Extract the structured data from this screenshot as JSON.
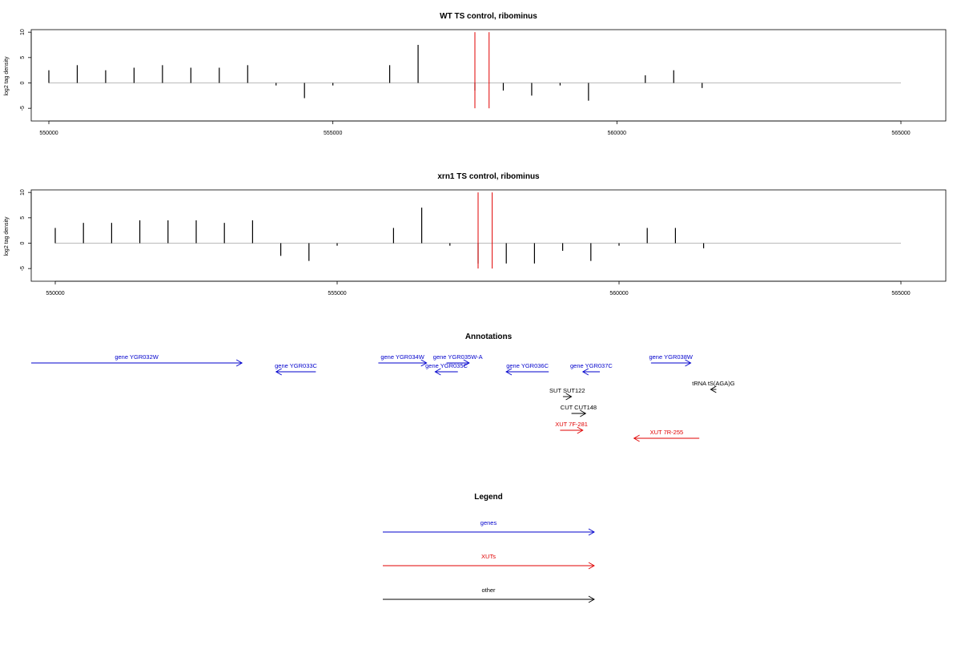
{
  "chart_data": [
    {
      "type": "bar",
      "title": "WT TS control, ribominus",
      "ylabel": "log2 tag density",
      "xlim": [
        550000,
        565000
      ],
      "ylim": [
        -7.5,
        10.5
      ],
      "yticks": [
        -5,
        0,
        5,
        10
      ],
      "xticks": [
        550000,
        555000,
        560000,
        565000
      ],
      "vlines": [
        557500,
        557750
      ],
      "vline_color": "#e00000",
      "bar_color": "#000000",
      "baseline_color": "#bbbbbb",
      "baseline_range": [
        550000,
        565000
      ],
      "series": [
        {
          "x": [
            550000,
            550500,
            551000,
            551500,
            552000,
            552500,
            553000,
            553500,
            554000,
            554500,
            555000,
            555500,
            556000,
            556500,
            557000,
            557500,
            558000,
            558500,
            559000,
            559500,
            560000,
            560500,
            561000,
            561500
          ],
          "values": [
            2.5,
            3.5,
            2.5,
            3.0,
            3.5,
            3.0,
            3.0,
            3.5,
            -0.5,
            -3.0,
            -0.5,
            0,
            3.5,
            7.5,
            0,
            -1.5,
            -1.5,
            -2.5,
            -0.5,
            -3.5,
            0,
            1.5,
            2.5,
            -1.0
          ]
        }
      ]
    },
    {
      "type": "bar",
      "title": "xrn1 TS control, ribominus",
      "ylabel": "log2 tag density",
      "xlim": [
        550000,
        565000
      ],
      "ylim": [
        -7.5,
        10.5
      ],
      "yticks": [
        -5,
        0,
        5,
        10
      ],
      "xticks": [
        550000,
        555000,
        560000,
        565000
      ],
      "vlines": [
        557500,
        557750
      ],
      "vline_color": "#e00000",
      "bar_color": "#000000",
      "baseline_color": "#bbbbbb",
      "baseline_range": [
        550000,
        565000
      ],
      "series": [
        {
          "x": [
            550000,
            550500,
            551000,
            551500,
            552000,
            552500,
            553000,
            553500,
            554000,
            554500,
            555000,
            555500,
            556000,
            556500,
            557000,
            557500,
            558000,
            558500,
            559000,
            559500,
            560000,
            560500,
            561000,
            561500
          ],
          "values": [
            3.0,
            4.0,
            4.0,
            4.5,
            4.5,
            4.5,
            4.0,
            4.5,
            -2.5,
            -3.5,
            -0.5,
            0,
            3.0,
            7.0,
            -0.5,
            -4.0,
            -4.0,
            -4.0,
            -1.5,
            -3.5,
            -0.5,
            3.0,
            3.0,
            -1.0
          ]
        }
      ]
    }
  ],
  "annotations": {
    "title": "Annotations",
    "xlim": [
      550000,
      565000
    ],
    "items": [
      {
        "label": "gene YGR032W",
        "start": 549000,
        "end": 553400,
        "strand": "+",
        "row": 0,
        "color": "#0000cc"
      },
      {
        "label": "gene YGR033C",
        "start": 554000,
        "end": 554700,
        "strand": "-",
        "row": 1,
        "color": "#0000cc"
      },
      {
        "label": "gene YGR034W",
        "start": 555800,
        "end": 556650,
        "strand": "+",
        "row": 0,
        "color": "#0000cc"
      },
      {
        "label": "gene YGR035W-A",
        "start": 557000,
        "end": 557400,
        "strand": "+",
        "row": 0,
        "color": "#0000cc"
      },
      {
        "label": "gene YGR035C",
        "start": 556800,
        "end": 557200,
        "strand": "-",
        "row": 1,
        "color": "#0000cc"
      },
      {
        "label": "gene YGR036C",
        "start": 558050,
        "end": 558800,
        "strand": "-",
        "row": 1,
        "color": "#0000cc"
      },
      {
        "label": "gene YGR037C",
        "start": 559400,
        "end": 559700,
        "strand": "-",
        "row": 1,
        "color": "#0000cc"
      },
      {
        "label": "gene YGR038W",
        "start": 560600,
        "end": 561300,
        "strand": "+",
        "row": 0,
        "color": "#0000cc"
      },
      {
        "label": "tRNA tS(AGA)G",
        "start": 561650,
        "end": 561750,
        "strand": "-",
        "row": 2,
        "color": "#000000"
      },
      {
        "label": "SUT SUT122",
        "start": 559050,
        "end": 559200,
        "strand": "+",
        "row": 3,
        "color": "#000000"
      },
      {
        "label": "CUT CUT148",
        "start": 559200,
        "end": 559450,
        "strand": "+",
        "row": 4,
        "color": "#000000"
      },
      {
        "label": "XUT 7F-281",
        "start": 559000,
        "end": 559400,
        "strand": "+",
        "row": 5,
        "color": "#e00000"
      },
      {
        "label": "XUT 7R-255",
        "start": 560300,
        "end": 561450,
        "strand": "-",
        "row": 6,
        "color": "#e00000"
      }
    ]
  },
  "legend": {
    "title": "Legend",
    "items": [
      {
        "label": "genes",
        "color": "#0000cc"
      },
      {
        "label": "XUTs",
        "color": "#e00000"
      },
      {
        "label": "other",
        "color": "#000000"
      }
    ]
  }
}
